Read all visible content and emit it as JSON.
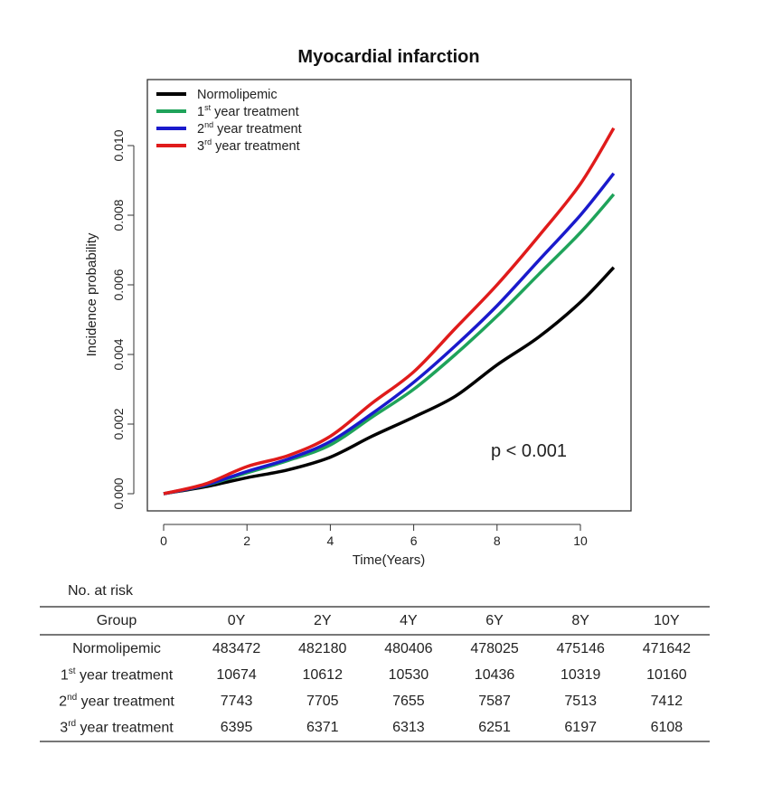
{
  "chart_data": {
    "type": "line",
    "title": "Myocardial infarction",
    "xlabel": "Time(Years)",
    "ylabel": "Incidence probability",
    "xlim": [
      -0.4,
      11.2
    ],
    "ylim": [
      -0.0005,
      0.0118
    ],
    "xticks": [
      "0",
      "2",
      "4",
      "6",
      "8",
      "10"
    ],
    "yticks": [
      "0.000",
      "0.002",
      "0.004",
      "0.006",
      "0.008",
      "0.010"
    ],
    "legend_position": "top-left",
    "annotation": "p < 0.001",
    "x": [
      0,
      1,
      2,
      3,
      4,
      5,
      6,
      7,
      8,
      9,
      10,
      10.8
    ],
    "series": [
      {
        "name": "Normolipemic",
        "sup": "",
        "rest": "",
        "color": "#000000",
        "values": [
          0,
          0.0002,
          0.00046,
          0.00069,
          0.00105,
          0.00165,
          0.0022,
          0.0028,
          0.0037,
          0.0045,
          0.0055,
          0.0065
        ]
      },
      {
        "name": "1",
        "sup": "st",
        "rest": " year treatment",
        "color": "#1fa35a",
        "values": [
          0,
          0.00024,
          0.0006,
          0.00096,
          0.0014,
          0.0022,
          0.003,
          0.004,
          0.0051,
          0.0063,
          0.0075,
          0.0086
        ]
      },
      {
        "name": "2",
        "sup": "nd",
        "rest": " year treatment",
        "color": "#1a1acc",
        "values": [
          0,
          0.00025,
          0.00064,
          0.001,
          0.0015,
          0.0023,
          0.0032,
          0.00425,
          0.0054,
          0.0067,
          0.008,
          0.0092
        ]
      },
      {
        "name": "3",
        "sup": "rd",
        "rest": " year treatment",
        "color": "#e01b1b",
        "values": [
          0,
          0.00028,
          0.00078,
          0.0011,
          0.00165,
          0.0026,
          0.0035,
          0.00475,
          0.006,
          0.0074,
          0.0089,
          0.0105
        ]
      }
    ]
  },
  "risk_table": {
    "caption": "No. at risk",
    "headers": [
      "Group",
      "0Y",
      "2Y",
      "4Y",
      "6Y",
      "8Y",
      "10Y"
    ],
    "rows": [
      {
        "g": "Normolipemic",
        "sup": "",
        "rest": "",
        "v": [
          "483472",
          "482180",
          "480406",
          "478025",
          "475146",
          "471642"
        ]
      },
      {
        "g": "1",
        "sup": "st",
        "rest": " year treatment",
        "v": [
          "10674",
          "10612",
          "10530",
          "10436",
          "10319",
          "10160"
        ]
      },
      {
        "g": "2",
        "sup": "nd",
        "rest": " year treatment",
        "v": [
          "7743",
          "7705",
          "7655",
          "7587",
          "7513",
          "7412"
        ]
      },
      {
        "g": "3",
        "sup": "rd",
        "rest": " year treatment",
        "v": [
          "6395",
          "6371",
          "6313",
          "6251",
          "6197",
          "6108"
        ]
      }
    ]
  }
}
